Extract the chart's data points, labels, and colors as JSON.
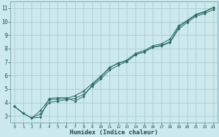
{
  "title": "",
  "xlabel": "Humidex (Indice chaleur)",
  "ylabel": "",
  "bg_color": "#cce9ee",
  "grid_color": "#b0cdd4",
  "line_color": "#2e6e65",
  "marker_color": "#2e6e65",
  "xlim": [
    -0.5,
    23.5
  ],
  "ylim": [
    2.5,
    11.5
  ],
  "xtick_labels": [
    "0",
    "1",
    "2",
    "3",
    "4",
    "5",
    "6",
    "7",
    "8",
    "9",
    "10",
    "11",
    "12",
    "13",
    "14",
    "15",
    "16",
    "17",
    "18",
    "19",
    "20",
    "21",
    "22",
    "23"
  ],
  "xtick_vals": [
    0,
    1,
    2,
    3,
    4,
    5,
    6,
    7,
    8,
    9,
    10,
    11,
    12,
    13,
    14,
    15,
    16,
    17,
    18,
    19,
    20,
    21,
    22,
    23
  ],
  "ytick_vals": [
    3,
    4,
    5,
    6,
    7,
    8,
    9,
    10,
    11
  ],
  "series": [
    {
      "x": [
        0,
        1,
        2,
        3,
        4,
        5,
        6,
        7,
        8,
        9,
        10,
        11,
        12,
        13,
        14,
        15,
        16,
        17,
        18,
        19,
        20,
        21,
        22,
        23
      ],
      "y": [
        3.7,
        3.2,
        2.85,
        2.9,
        4.3,
        4.35,
        4.35,
        4.1,
        4.45,
        5.3,
        5.9,
        6.55,
        6.95,
        7.05,
        7.55,
        7.75,
        8.1,
        8.25,
        8.5,
        9.6,
        10.05,
        10.5,
        10.7,
        11.05
      ]
    },
    {
      "x": [
        0,
        1,
        2,
        3,
        4,
        5,
        6,
        7,
        8,
        9,
        10,
        11,
        12,
        13,
        14,
        15,
        16,
        17,
        18,
        19,
        20,
        21,
        22,
        23
      ],
      "y": [
        3.7,
        3.2,
        2.85,
        3.15,
        4.0,
        4.1,
        4.2,
        4.3,
        4.6,
        5.2,
        5.75,
        6.4,
        6.75,
        7.05,
        7.55,
        7.75,
        8.1,
        8.2,
        8.45,
        9.45,
        9.95,
        10.4,
        10.6,
        10.9
      ]
    },
    {
      "x": [
        0,
        1,
        2,
        3,
        4,
        5,
        6,
        7,
        8,
        9,
        10,
        11,
        12,
        13,
        14,
        15,
        16,
        17,
        18,
        19,
        20,
        21,
        22,
        23
      ],
      "y": [
        3.7,
        3.2,
        2.85,
        3.4,
        4.2,
        4.25,
        4.3,
        4.5,
        4.85,
        5.4,
        5.95,
        6.6,
        6.9,
        7.15,
        7.65,
        7.85,
        8.2,
        8.35,
        8.7,
        9.7,
        10.1,
        10.55,
        10.75,
        11.05
      ]
    }
  ]
}
